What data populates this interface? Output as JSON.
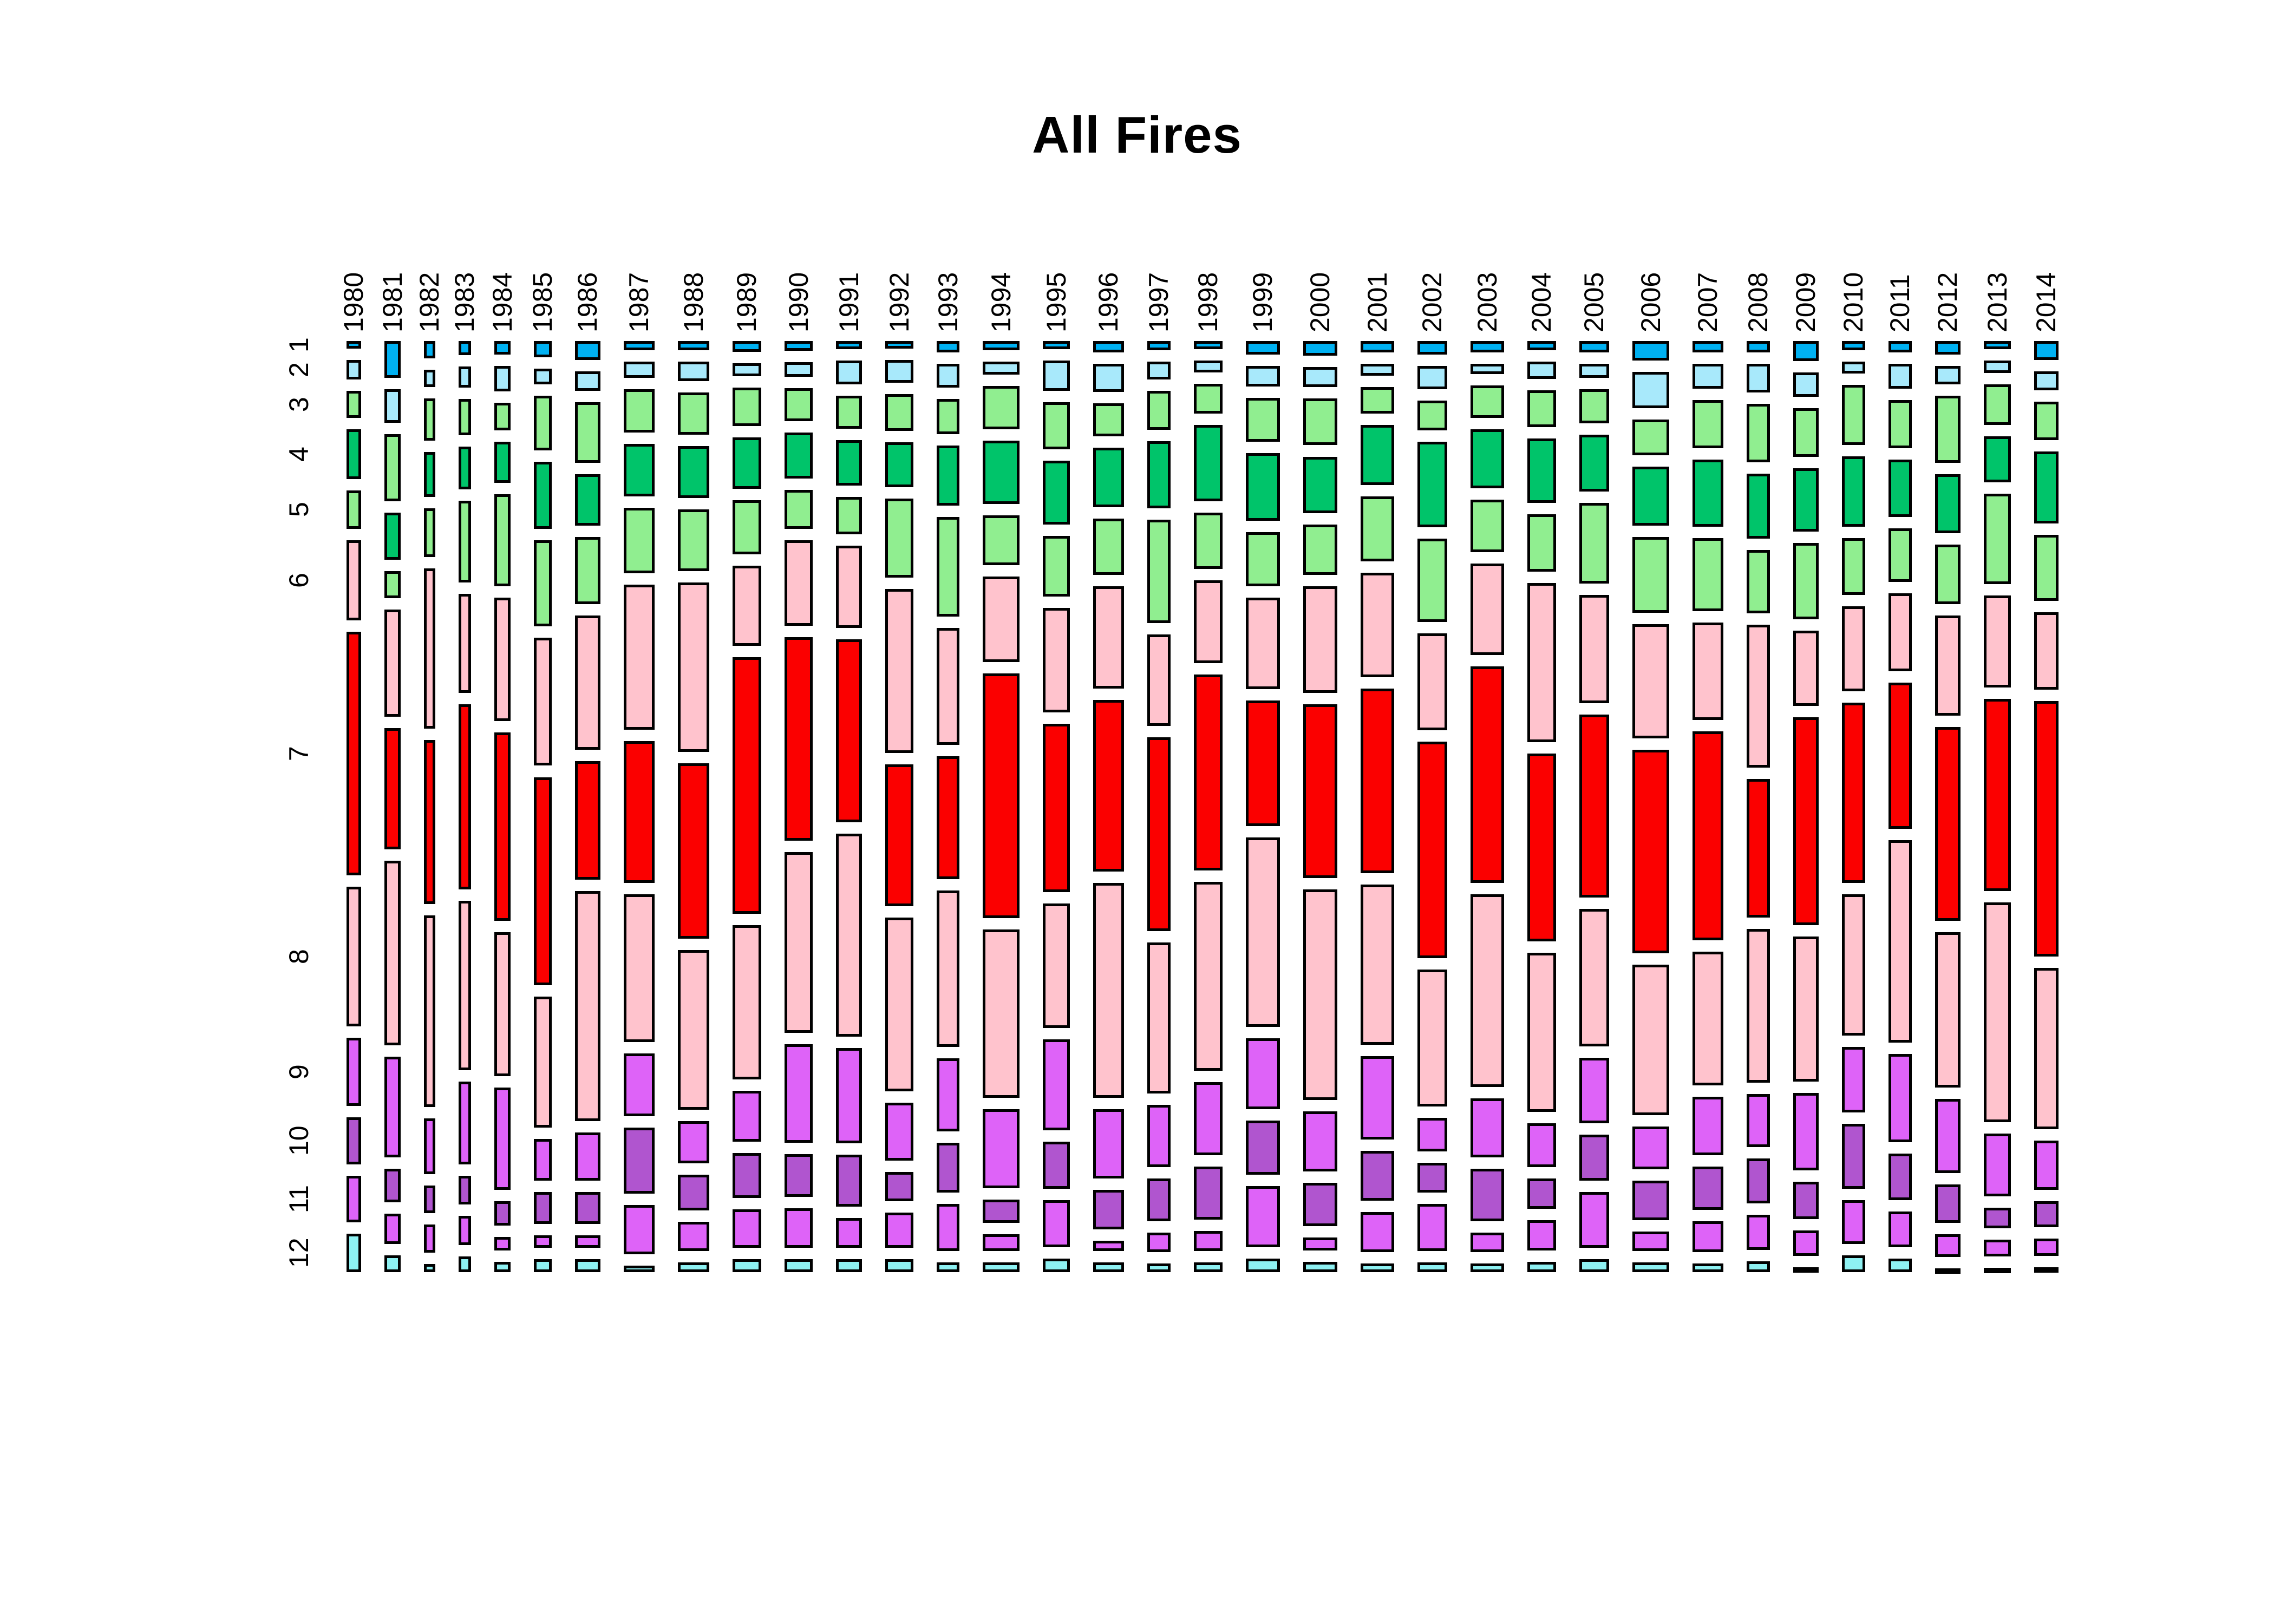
{
  "chart_data": {
    "type": "mosaic",
    "title": "All Fires",
    "xlabel": "",
    "ylabel": "",
    "x_axis": "year",
    "y_axis": "month",
    "legend": "none",
    "grid": false,
    "row_labels": [
      "1",
      "2",
      "3",
      "4",
      "5",
      "6",
      "7",
      "8",
      "9",
      "10",
      "11",
      "12"
    ],
    "month_colors": {
      "1": "#00B1F2",
      "2": "#A8E9FB",
      "3": "#90EE90",
      "4": "#00C46A",
      "5": "#90EE90",
      "6": "#FFC3CD",
      "7": "#FB0000",
      "8": "#FFC3CD",
      "9": "#DE63F8",
      "10": "#B055CF",
      "11": "#DE63F8",
      "12": "#8EF1F2"
    },
    "note": "Column width proportional to yearly total; cell height proportional to month share within year.",
    "columns": [
      {
        "year": "1980",
        "weight": 27,
        "month_shares": [
          13,
          35,
          47,
          88,
          68,
          141,
          430,
          246,
          120,
          83,
          82,
          68
        ]
      },
      {
        "year": "1981",
        "weight": 30,
        "month_shares": [
          55,
          50,
          100,
          70,
          40,
          160,
          180,
          275,
          150,
          50,
          45,
          25
        ]
      },
      {
        "year": "1982",
        "weight": 21,
        "month_shares": [
          25,
          25,
          60,
          65,
          70,
          230,
          235,
          275,
          80,
          40,
          40,
          12
        ]
      },
      {
        "year": "1983",
        "weight": 23,
        "month_shares": [
          22,
          33,
          57,
          67,
          128,
          155,
          290,
          265,
          130,
          45,
          45,
          25
        ]
      },
      {
        "year": "1984",
        "weight": 30,
        "month_shares": [
          20,
          37,
          40,
          60,
          135,
          180,
          275,
          210,
          150,
          35,
          20,
          15
        ]
      },
      {
        "year": "1985",
        "weight": 33,
        "month_shares": [
          25,
          25,
          85,
          105,
          135,
          200,
          325,
          205,
          65,
          50,
          20,
          20
        ]
      },
      {
        "year": "1986",
        "weight": 47,
        "month_shares": [
          30,
          30,
          95,
          80,
          105,
          210,
          185,
          360,
          75,
          50,
          20,
          20
        ]
      },
      {
        "year": "1987",
        "weight": 57,
        "month_shares": [
          14,
          25,
          65,
          80,
          100,
          220,
          215,
          225,
          95,
          100,
          75,
          10
        ]
      },
      {
        "year": "1988",
        "weight": 58,
        "month_shares": [
          14,
          30,
          65,
          80,
          95,
          260,
          270,
          245,
          65,
          55,
          45,
          15
        ]
      },
      {
        "year": "1989",
        "weight": 53,
        "month_shares": [
          17,
          20,
          60,
          80,
          85,
          125,
          400,
          240,
          80,
          70,
          60,
          20
        ]
      },
      {
        "year": "1990",
        "weight": 52,
        "month_shares": [
          15,
          22,
          50,
          70,
          60,
          130,
          310,
          275,
          150,
          65,
          60,
          20
        ]
      },
      {
        "year": "1991",
        "weight": 48,
        "month_shares": [
          12,
          37,
          50,
          70,
          57,
          125,
          280,
          310,
          145,
          80,
          45,
          20
        ]
      },
      {
        "year": "1992",
        "weight": 52,
        "month_shares": [
          12,
          35,
          57,
          70,
          123,
          255,
          220,
          270,
          90,
          45,
          55,
          20
        ]
      },
      {
        "year": "1993",
        "weight": 42,
        "month_shares": [
          17,
          36,
          53,
          90,
          150,
          175,
          185,
          235,
          110,
          75,
          70,
          15
        ]
      },
      {
        "year": "1994",
        "weight": 68,
        "month_shares": [
          14,
          20,
          65,
          96,
          75,
          130,
          370,
          255,
          120,
          35,
          25,
          15
        ]
      },
      {
        "year": "1995",
        "weight": 50,
        "month_shares": [
          12,
          45,
          70,
          95,
          90,
          155,
          250,
          185,
          135,
          70,
          70,
          20
        ]
      },
      {
        "year": "1996",
        "weight": 57,
        "month_shares": [
          17,
          43,
          50,
          90,
          85,
          155,
          260,
          325,
          105,
          60,
          15,
          15
        ]
      },
      {
        "year": "1997",
        "weight": 43,
        "month_shares": [
          14,
          27,
          60,
          102,
          157,
          140,
          295,
          230,
          95,
          65,
          30,
          13
        ]
      },
      {
        "year": "1998",
        "weight": 53,
        "month_shares": [
          12,
          18,
          45,
          115,
          85,
          125,
          295,
          285,
          110,
          80,
          30,
          15
        ]
      },
      {
        "year": "1999",
        "weight": 63,
        "month_shares": [
          20,
          30,
          65,
          100,
          80,
          135,
          185,
          280,
          105,
          80,
          90,
          20
        ]
      },
      {
        "year": "2000",
        "weight": 63,
        "month_shares": [
          22,
          30,
          70,
          85,
          75,
          160,
          260,
          315,
          90,
          65,
          20,
          15
        ]
      },
      {
        "year": "2001",
        "weight": 62,
        "month_shares": [
          17,
          18,
          40,
          90,
          97,
          157,
          277,
          240,
          125,
          75,
          60,
          13
        ]
      },
      {
        "year": "2002",
        "weight": 55,
        "month_shares": [
          20,
          35,
          45,
          128,
          125,
          145,
          325,
          205,
          50,
          45,
          70,
          15
        ]
      },
      {
        "year": "2003",
        "weight": 62,
        "month_shares": [
          17,
          16,
          50,
          90,
          80,
          140,
          330,
          295,
          90,
          80,
          30,
          13
        ]
      },
      {
        "year": "2004",
        "weight": 53,
        "month_shares": [
          14,
          25,
          55,
          95,
          85,
          235,
          278,
          235,
          65,
          45,
          45,
          15
        ]
      },
      {
        "year": "2005",
        "weight": 55,
        "month_shares": [
          17,
          22,
          52,
          87,
          123,
          165,
          280,
          210,
          100,
          70,
          85,
          20
        ]
      },
      {
        "year": "2006",
        "weight": 68,
        "month_shares": [
          30,
          55,
          55,
          90,
          115,
          175,
          310,
          230,
          65,
          60,
          30,
          15
        ]
      },
      {
        "year": "2007",
        "weight": 57,
        "month_shares": [
          17,
          38,
          72,
          102,
          110,
          147,
          315,
          202,
          88,
          65,
          47,
          13
        ]
      },
      {
        "year": "2008",
        "weight": 43,
        "month_shares": [
          17,
          43,
          88,
          97,
          95,
          214,
          208,
          230,
          80,
          67,
          53,
          16
        ]
      },
      {
        "year": "2009",
        "weight": 47,
        "month_shares": [
          30,
          36,
          72,
          94,
          113,
          112,
          308,
          215,
          115,
          55,
          38,
          7
        ]
      },
      {
        "year": "2010",
        "weight": 43,
        "month_shares": [
          14,
          18,
          90,
          105,
          85,
          128,
          270,
          212,
          98,
          97,
          66,
          25
        ]
      },
      {
        "year": "2011",
        "weight": 43,
        "month_shares": [
          17,
          38,
          72,
          87,
          80,
          118,
          220,
          305,
          133,
          70,
          54,
          20
        ]
      },
      {
        "year": "2012",
        "weight": 47,
        "month_shares": [
          20,
          27,
          100,
          87,
          88,
          148,
          287,
          230,
          110,
          57,
          33,
          6
        ]
      },
      {
        "year": "2013",
        "weight": 50,
        "month_shares": [
          12,
          18,
          60,
          67,
          133,
          135,
          282,
          323,
          92,
          30,
          25,
          6
        ]
      },
      {
        "year": "2014",
        "weight": 45,
        "month_shares": [
          27,
          27,
          55,
          103,
          94,
          110,
          365,
          230,
          70,
          37,
          25,
          7
        ]
      }
    ]
  }
}
